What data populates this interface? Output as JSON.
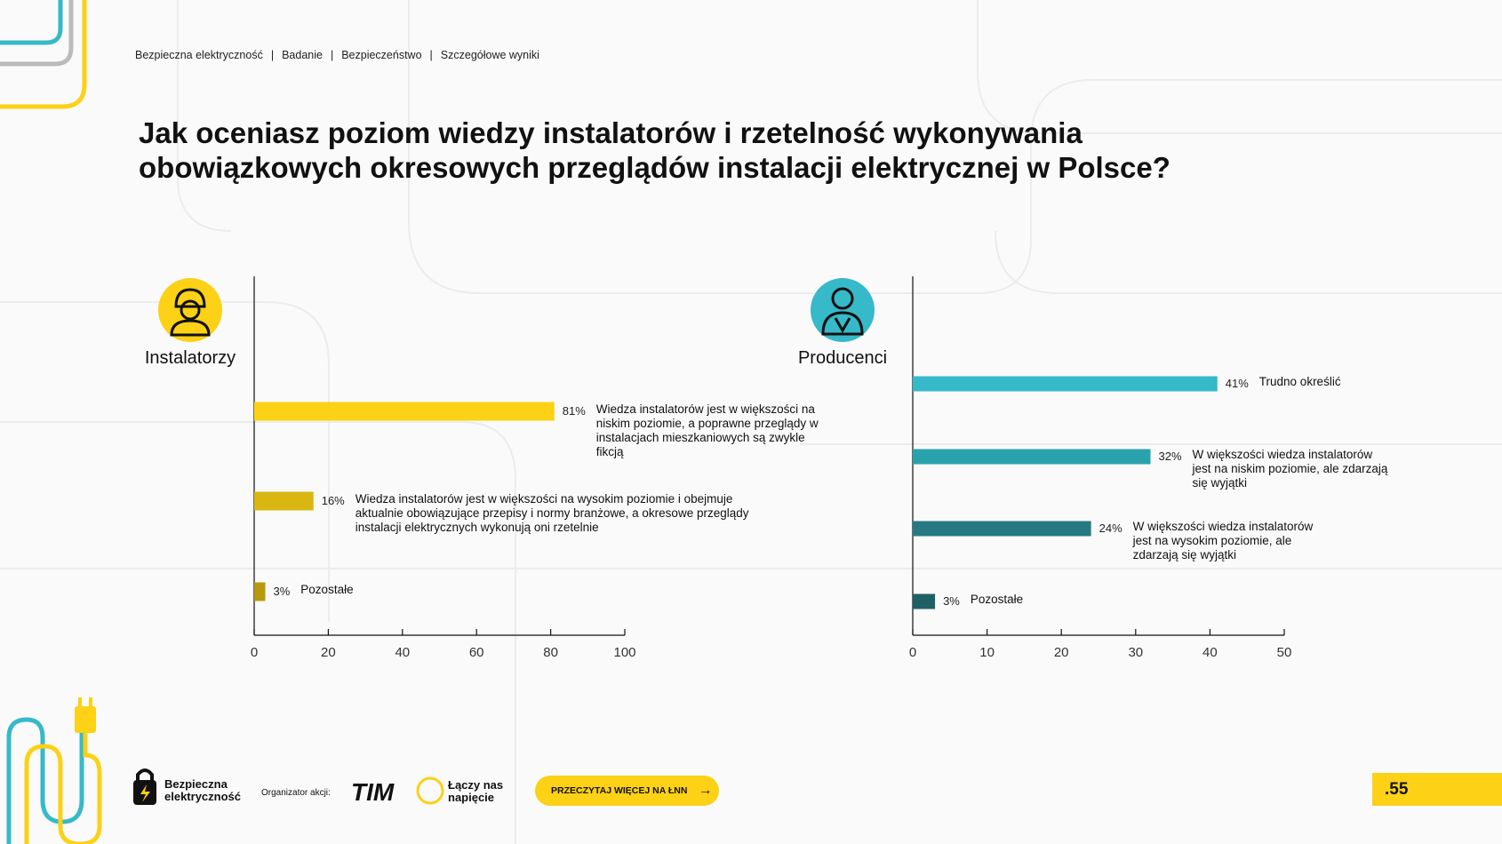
{
  "breadcrumb": [
    "Bezpieczna elektryczność",
    "Badanie",
    "Bezpieczeństwo",
    "Szczegółowe wyniki"
  ],
  "title": "Jak oceniasz poziom wiedzy instalatorów i rzetelność wykonywania obowiązkowych okresowych przeglądów instalacji elektrycznej w Polsce?",
  "chart_data": [
    {
      "type": "hbar",
      "title": "Instalatorzy",
      "categories": [
        "Wiedza instalatorów jest w większości na niskim poziomie, a poprawne przeglądy w instalacjach mieszkaniowych są zwykle fikcją",
        "Wiedza instalatorów jest w większości na wysokim poziomie i obejmuje aktualnie obowiązujące przepisy i normy branżowe, a okresowe przeglądy instalacji elektrycznych wykonują oni rzetelnie",
        "Pozostałe"
      ],
      "values": [
        81,
        16,
        3
      ],
      "value_labels": [
        "81%",
        "16%",
        "3%"
      ],
      "colors": [
        "#fcd116",
        "#d9b612",
        "#b8990e"
      ],
      "xlim": [
        0,
        100
      ],
      "xticks": [
        0,
        20,
        40,
        60,
        80,
        100
      ]
    },
    {
      "type": "hbar",
      "title": "Producenci",
      "categories": [
        "Trudno określić",
        "W większości wiedza instalatorów jest na niskim poziomie, ale zdarzają się wyjątki",
        "W większości wiedza instalatorów jest na wysokim poziomie, ale zdarzają się wyjątki",
        "Pozostałe"
      ],
      "values": [
        41,
        32,
        24,
        3
      ],
      "value_labels": [
        "41%",
        "32%",
        "24%",
        "3%"
      ],
      "colors": [
        "#36b9c9",
        "#2aa2ab",
        "#267b82",
        "#1f6065"
      ],
      "xlim": [
        0,
        50
      ],
      "xticks": [
        0,
        10,
        20,
        30,
        40,
        50
      ]
    }
  ],
  "footer": {
    "logo": "Bezpieczna elektryczność",
    "organizer": "Organizator akcji:",
    "brand": "TIM",
    "slogan": "Łączy nas napięcie",
    "button": "PRZECZYTAJ WIĘCEJ NA ŁNN",
    "page": ".55"
  }
}
